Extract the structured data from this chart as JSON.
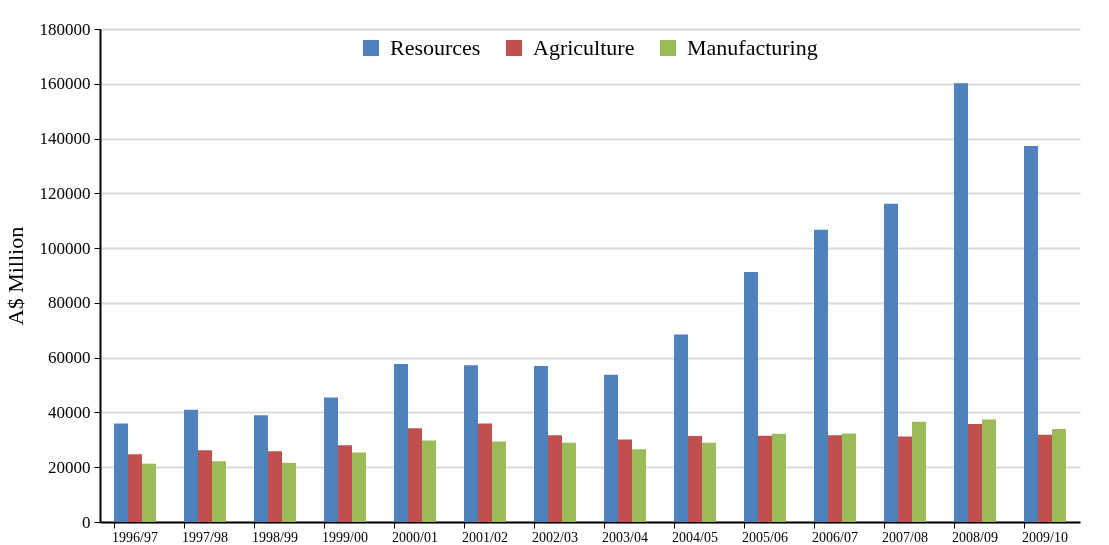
{
  "chart_data": {
    "type": "bar",
    "ylabel": "A$ Million",
    "categories": [
      "1996/97",
      "1997/98",
      "1998/99",
      "1999/00",
      "2000/01",
      "2001/02",
      "2002/03",
      "2003/04",
      "2004/05",
      "2005/06",
      "2006/07",
      "2007/08",
      "2008/09",
      "2009/10"
    ],
    "series": [
      {
        "name": "Resources",
        "color": "#4f81bd",
        "values": [
          36000,
          41000,
          39000,
          45500,
          57700,
          57200,
          57000,
          53800,
          68500,
          91300,
          106700,
          116200,
          160200,
          137300
        ]
      },
      {
        "name": "Agriculture",
        "color": "#c0504d",
        "values": [
          24700,
          26200,
          25800,
          28000,
          34200,
          36000,
          31700,
          30100,
          31400,
          31500,
          31700,
          31200,
          35800,
          31900
        ]
      },
      {
        "name": "Manufacturing",
        "color": "#9bbb59",
        "values": [
          21300,
          22200,
          21600,
          25400,
          29800,
          29400,
          28900,
          26600,
          28900,
          32200,
          32300,
          36600,
          37400,
          34000
        ]
      }
    ],
    "ylim": [
      0,
      180000
    ],
    "yticks": [
      0,
      20000,
      40000,
      60000,
      80000,
      100000,
      120000,
      140000,
      160000,
      180000
    ],
    "grid": "y",
    "legend": "top"
  }
}
